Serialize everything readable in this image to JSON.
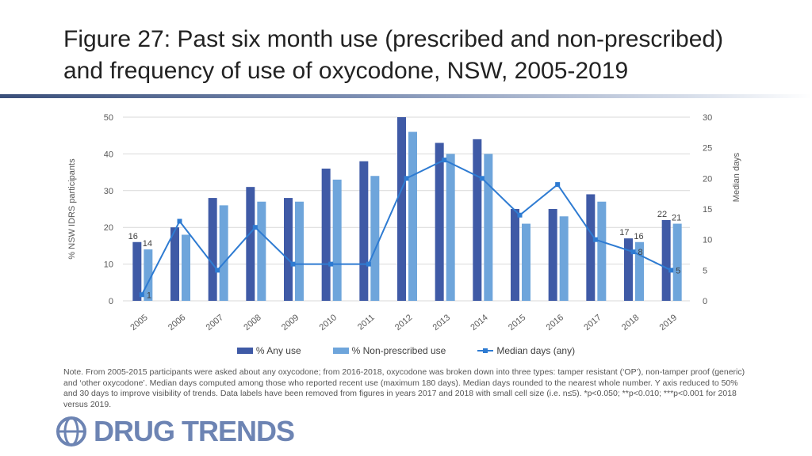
{
  "title": {
    "line1": "Figure 27: Past six month use (prescribed and non-prescribed)",
    "line2": "and frequency of use of oxycodone, NSW, 2005-2019"
  },
  "note": "Note. From 2005-2015 participants were asked about any oxycodone; from 2016-2018, oxycodone was broken down into three types: tamper resistant (‘OP’), non-tamper proof (generic) and ‘other oxycodone’. Median days computed among those who reported recent use (maximum 180 days). Median days rounded to the nearest whole number. Y axis reduced to 50% and 30 days to improve visibility of trends. Data labels have been removed from figures in years 2017 and 2018 with small cell size (i.e. n≤5). *p<0.050; **p<0.010; ***p<0.001 for 2018 versus 2019.",
  "logo": {
    "text": "DRUG TRENDS"
  },
  "chart_data": {
    "type": "bar",
    "categories": [
      "2005",
      "2006",
      "2007",
      "2008",
      "2009",
      "2010",
      "2011",
      "2012",
      "2013",
      "2014",
      "2015",
      "2016",
      "2017",
      "2018",
      "2019"
    ],
    "series": [
      {
        "name": "% Any use",
        "type": "bar",
        "axis": "left",
        "color": "#3f5aa6",
        "values": [
          16,
          20,
          28,
          31,
          28,
          36,
          38,
          50,
          43,
          44,
          25,
          25,
          29,
          17,
          22
        ]
      },
      {
        "name": "% Non-prescribed use",
        "type": "bar",
        "axis": "left",
        "color": "#6ea5db",
        "values": [
          14,
          18,
          26,
          27,
          27,
          33,
          34,
          46,
          40,
          40,
          21,
          23,
          27,
          16,
          21
        ]
      },
      {
        "name": "Median days (any)",
        "type": "line",
        "axis": "right",
        "color": "#2e7bd2",
        "values": [
          1,
          13,
          5,
          12,
          6,
          6,
          6,
          20,
          23,
          20,
          14,
          19,
          10,
          8,
          5
        ]
      }
    ],
    "data_labels": [
      {
        "series": 0,
        "index": 0,
        "text": "16"
      },
      {
        "series": 1,
        "index": 0,
        "text": "14"
      },
      {
        "series": 2,
        "index": 0,
        "text": "1"
      },
      {
        "series": 0,
        "index": 13,
        "text": "17"
      },
      {
        "series": 1,
        "index": 13,
        "text": "16"
      },
      {
        "series": 2,
        "index": 13,
        "text": "8"
      },
      {
        "series": 0,
        "index": 14,
        "text": "22"
      },
      {
        "series": 1,
        "index": 14,
        "text": "21"
      },
      {
        "series": 2,
        "index": 14,
        "text": "5"
      }
    ],
    "ylabel": "% NSW IDRS participants",
    "y2label": "Median days",
    "ylim": [
      0,
      50
    ],
    "yticks": [
      0,
      10,
      20,
      30,
      40,
      50
    ],
    "y2lim": [
      0,
      30
    ],
    "y2ticks": [
      0,
      5,
      10,
      15,
      20,
      25,
      30
    ],
    "grid": true,
    "legend_position": "bottom"
  }
}
